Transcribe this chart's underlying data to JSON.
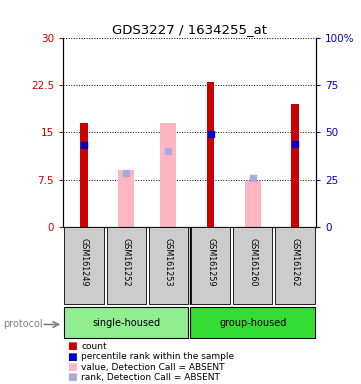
{
  "title": "GDS3227 / 1634255_at",
  "samples": [
    "GSM161249",
    "GSM161252",
    "GSM161253",
    "GSM161259",
    "GSM161260",
    "GSM161262"
  ],
  "ylim_left": [
    0,
    30
  ],
  "ylim_right": [
    0,
    100
  ],
  "yticks_left": [
    0,
    7.5,
    15,
    22.5,
    30
  ],
  "yticks_right": [
    0,
    25,
    50,
    75,
    100
  ],
  "yticklabels_left": [
    "0",
    "7.5",
    "15",
    "22.5",
    "30"
  ],
  "yticklabels_right": [
    "0",
    "25",
    "50",
    "75",
    "100%"
  ],
  "red_bars": [
    16.5,
    null,
    null,
    23.0,
    null,
    19.5
  ],
  "pink_bars": [
    null,
    9.0,
    16.5,
    null,
    7.2,
    null
  ],
  "blue_squares": [
    13.0,
    null,
    null,
    14.8,
    null,
    13.2
  ],
  "lavender_squares": [
    null,
    8.5,
    12.0,
    null,
    7.8,
    null
  ],
  "red_color": "#CC0000",
  "pink_color": "#FFB6C1",
  "blue_color": "#0000CC",
  "lavender_color": "#AAAADD",
  "legend_items": [
    {
      "color": "#CC0000",
      "label": "count"
    },
    {
      "color": "#0000CC",
      "label": "percentile rank within the sample"
    },
    {
      "color": "#FFB6C1",
      "label": "value, Detection Call = ABSENT"
    },
    {
      "color": "#AAAADD",
      "label": "rank, Detection Call = ABSENT"
    }
  ],
  "left_axis_color": "#CC0000",
  "right_axis_color": "#0000CC",
  "single_housed_color": "#90EE90",
  "group_housed_color": "#33DD33",
  "label_bg_color": "#CCCCCC"
}
